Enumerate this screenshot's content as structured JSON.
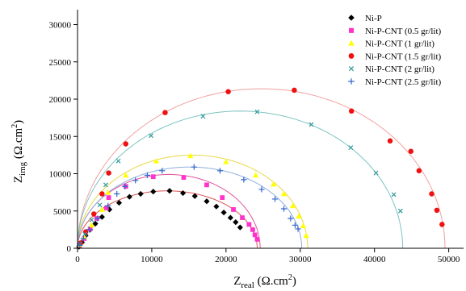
{
  "chart_data": {
    "type": "scatter",
    "xlabel": {
      "main": "Z",
      "sub": "real",
      "unit": " (Ω.cm",
      "sup": "2",
      "close": ")"
    },
    "ylabel": {
      "main": "Z",
      "sub": "img",
      "unit": " (Ω.cm",
      "sup": "2",
      "close": ")"
    },
    "xlim": [
      0,
      52000
    ],
    "ylim": [
      0,
      32000
    ],
    "x_ticks": [
      0,
      10000,
      20000,
      30000,
      40000,
      50000
    ],
    "y_ticks": [
      0,
      5000,
      10000,
      15000,
      20000,
      25000,
      30000
    ],
    "x_tick_labels": [
      "0",
      "10000",
      "20000",
      "30000",
      "40000",
      "50000"
    ],
    "y_tick_labels": [
      "0",
      "5000",
      "10000",
      "15000",
      "20000",
      "25000",
      "30000"
    ],
    "legend_position": "top-right",
    "grid": false,
    "series": [
      {
        "name": "Ni-P",
        "marker": "diamond",
        "color": "#000000",
        "fit_color": "#d9534f",
        "fit": {
          "x0": 0,
          "x1": 24200,
          "peak": 7700
        },
        "points": [
          [
            200,
            200
          ],
          [
            600,
            800
          ],
          [
            1100,
            1700
          ],
          [
            1700,
            2500
          ],
          [
            2400,
            3300
          ],
          [
            3300,
            4200
          ],
          [
            4300,
            5200
          ],
          [
            5600,
            6100
          ],
          [
            7000,
            6900
          ],
          [
            8500,
            7300
          ],
          [
            10200,
            7600
          ],
          [
            12400,
            7700
          ],
          [
            14200,
            7400
          ],
          [
            15800,
            7000
          ],
          [
            17400,
            6300
          ],
          [
            18700,
            5600
          ],
          [
            19700,
            4800
          ],
          [
            20600,
            4100
          ],
          [
            21300,
            3500
          ],
          [
            21900,
            2800
          ]
        ]
      },
      {
        "name": "Ni-P-CNT (0.5 gr/lit)",
        "marker": "square",
        "color": "#ff33cc",
        "fit_color": "#e0559a",
        "fit": {
          "x0": 0,
          "x1": 24600,
          "peak": 9900
        },
        "points": [
          [
            300,
            400
          ],
          [
            900,
            1300
          ],
          [
            1700,
            2600
          ],
          [
            2600,
            4000
          ],
          [
            3900,
            5400
          ],
          [
            4200,
            6800
          ],
          [
            6500,
            8300
          ],
          [
            10200,
            9600
          ],
          [
            14300,
            9500
          ],
          [
            17400,
            8500
          ],
          [
            19500,
            6800
          ],
          [
            21000,
            5200
          ],
          [
            22200,
            4100
          ],
          [
            23100,
            3200
          ],
          [
            23600,
            2500
          ],
          [
            23900,
            1800
          ],
          [
            24200,
            1200
          ]
        ]
      },
      {
        "name": "Ni-P-CNT (1 gr/lit)",
        "marker": "triangle",
        "color": "#ffff00",
        "fit_color": "#e8d84a",
        "fit": {
          "x0": 0,
          "x1": 31000,
          "peak": 12500
        },
        "points": [
          [
            300,
            500
          ],
          [
            900,
            1500
          ],
          [
            1900,
            3100
          ],
          [
            3300,
            5200
          ],
          [
            4100,
            7500
          ],
          [
            6500,
            9800
          ],
          [
            10600,
            11700
          ],
          [
            15200,
            12400
          ],
          [
            20000,
            11600
          ],
          [
            24000,
            9800
          ],
          [
            26400,
            8600
          ],
          [
            27800,
            7300
          ],
          [
            29000,
            5700
          ],
          [
            29800,
            4300
          ],
          [
            30400,
            3000
          ],
          [
            30800,
            1700
          ]
        ]
      },
      {
        "name": "Ni-P-CNT (1.5 gr/lit)",
        "marker": "circle",
        "color": "#ee1111",
        "fit_color": "#f2a0a0",
        "fit": {
          "x0": 0,
          "x1": 49500,
          "peak": 21400
        },
        "points": [
          [
            400,
            700
          ],
          [
            1100,
            2200
          ],
          [
            2200,
            4600
          ],
          [
            3300,
            7300
          ],
          [
            4200,
            10100
          ],
          [
            6500,
            14000
          ],
          [
            11800,
            18200
          ],
          [
            20300,
            21000
          ],
          [
            29200,
            21200
          ],
          [
            36900,
            18400
          ],
          [
            42100,
            14400
          ],
          [
            44900,
            13000
          ],
          [
            46000,
            10400
          ],
          [
            47700,
            7300
          ],
          [
            48400,
            5100
          ],
          [
            49100,
            3200
          ]
        ]
      },
      {
        "name": "Ni-P-CNT (2 gr/lit)",
        "marker": "cross",
        "color": "#339999",
        "fit_color": "#7ec4c2",
        "fit": {
          "x0": 0,
          "x1": 43800,
          "peak": 18400
        },
        "points": [
          [
            300,
            600
          ],
          [
            1000,
            1900
          ],
          [
            1900,
            3800
          ],
          [
            3000,
            5800
          ],
          [
            3800,
            8500
          ],
          [
            5500,
            11700
          ],
          [
            9900,
            15100
          ],
          [
            16900,
            17700
          ],
          [
            24200,
            18300
          ],
          [
            31500,
            16600
          ],
          [
            36800,
            13500
          ],
          [
            40200,
            10100
          ],
          [
            42600,
            7200
          ],
          [
            43500,
            5000
          ]
        ]
      },
      {
        "name": "Ni-P-CNT (2.5 gr/lit)",
        "marker": "plus",
        "color": "#3366cc",
        "fit_color": "#8fb0dd",
        "fit": {
          "x0": 0,
          "x1": 30200,
          "peak": 10900
        },
        "points": [
          [
            300,
            400
          ],
          [
            800,
            1300
          ],
          [
            1600,
            2500
          ],
          [
            2700,
            4000
          ],
          [
            4100,
            5700
          ],
          [
            5300,
            7300
          ],
          [
            6400,
            8300
          ],
          [
            7800,
            9100
          ],
          [
            9400,
            9800
          ],
          [
            11400,
            10400
          ],
          [
            15700,
            10900
          ],
          [
            19200,
            10400
          ],
          [
            22400,
            9200
          ],
          [
            24800,
            7900
          ],
          [
            26600,
            6600
          ],
          [
            27800,
            5300
          ],
          [
            28700,
            4000
          ],
          [
            29300,
            3100
          ],
          [
            29700,
            2600
          ]
        ]
      }
    ]
  }
}
